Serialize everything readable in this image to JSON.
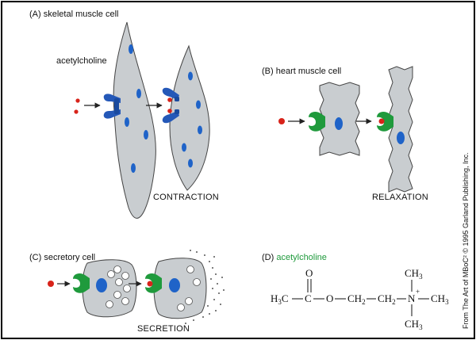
{
  "panels": {
    "a": {
      "title": "(A) skeletal muscle cell",
      "ligand": "acetylcholine",
      "caption": "CONTRACTION"
    },
    "b": {
      "title": "(B) heart muscle cell",
      "caption": "RELAXATION"
    },
    "c": {
      "title": "(C) secretory cell",
      "caption": "SECRETION"
    },
    "d": {
      "title_prefix": "(D) ",
      "title_name": "acetylcholine",
      "formula": {
        "h3c": "H",
        "h3c_sub": "3",
        "h3c_c": "C",
        "carbon": "C",
        "oxygen_top": "O",
        "oxygen_chain": "O",
        "ch2_a": "CH",
        "ch2_a_sub": "2",
        "ch2_b": "CH",
        "ch2_b_sub": "2",
        "nitrogen": "N",
        "charge": "+",
        "ch3_top": "CH",
        "ch3_top_sub": "3",
        "ch3_right": "CH",
        "ch3_right_sub": "3",
        "ch3_bottom": "CH",
        "ch3_bottom_sub": "3"
      }
    }
  },
  "credit": "From The Art of MBoC² © 1995 Garland Publishing, Inc.",
  "colors": {
    "border": "#000000",
    "cell_fill": "#c9cdd0",
    "nucleus": "#1f63c8",
    "receptor_blue": "#2458b8",
    "receptor_green": "#1f9a3c",
    "ligand_red": "#d8231a",
    "green_text": "#1f9a3c"
  }
}
